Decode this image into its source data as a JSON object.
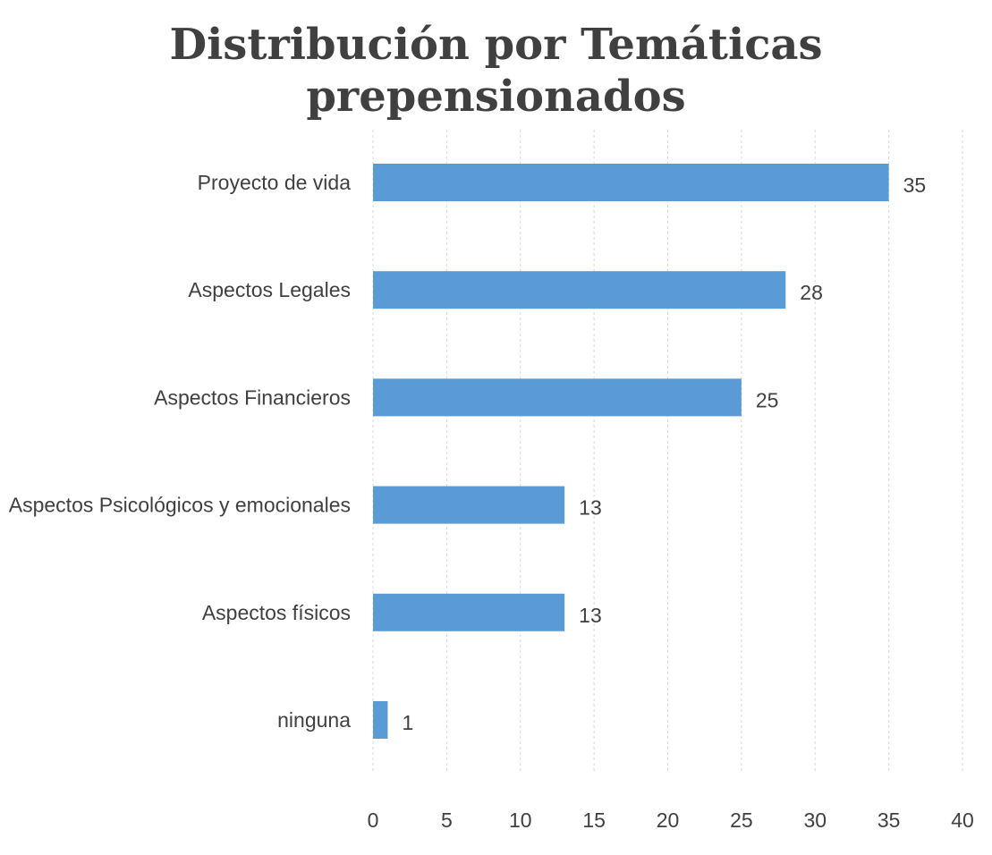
{
  "chart_data": {
    "type": "bar",
    "orientation": "horizontal",
    "title": "Distribución por Temáticas prepensionados",
    "categories": [
      "Proyecto de vida",
      "Aspectos Legales",
      "Aspectos Financieros",
      "Aspectos Psicológicos y emocionales",
      "Aspectos físicos",
      "ninguna"
    ],
    "values": [
      35,
      28,
      25,
      13,
      13,
      1
    ],
    "data_labels": [
      "35",
      "28",
      "25",
      "13",
      "13",
      "1"
    ],
    "xticks": [
      0,
      5,
      10,
      15,
      20,
      25,
      30,
      35,
      40
    ],
    "xtick_labels": [
      "0",
      "5",
      "10",
      "15",
      "20",
      "25",
      "30",
      "35",
      "40"
    ],
    "xlim": [
      0,
      40
    ],
    "xlabel": "",
    "ylabel": "",
    "grid": "vertical-dashed",
    "legend": "none",
    "bar_color": "#5b9bd5",
    "text_color": "#404040",
    "grid_color": "#d9d9d9"
  }
}
